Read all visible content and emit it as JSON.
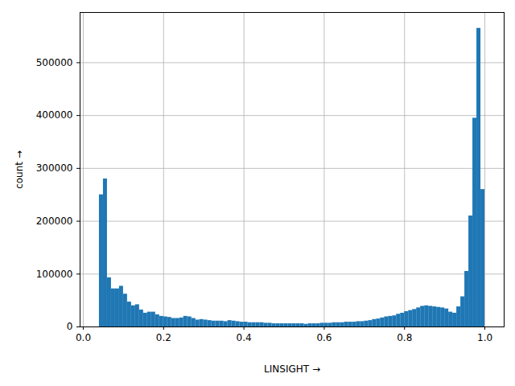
{
  "chart_data": {
    "type": "histogram",
    "x_label": "LINSIGHT",
    "y_label": "count",
    "color": "#1f77b4",
    "grid": true,
    "bins": [
      0.04,
      0.05,
      0.06,
      0.07,
      0.08,
      0.09,
      0.1,
      0.11,
      0.12,
      0.13,
      0.14,
      0.15,
      0.16,
      0.17,
      0.18,
      0.19,
      0.2,
      0.21,
      0.22,
      0.23,
      0.24,
      0.25,
      0.26,
      0.27,
      0.28,
      0.29,
      0.3,
      0.31,
      0.32,
      0.33,
      0.34,
      0.35,
      0.36,
      0.37,
      0.38,
      0.39,
      0.4,
      0.41,
      0.42,
      0.43,
      0.44,
      0.45,
      0.46,
      0.47,
      0.48,
      0.49,
      0.5,
      0.51,
      0.52,
      0.53,
      0.54,
      0.55,
      0.56,
      0.57,
      0.58,
      0.59,
      0.6,
      0.61,
      0.62,
      0.63,
      0.64,
      0.65,
      0.66,
      0.67,
      0.68,
      0.69,
      0.7,
      0.71,
      0.72,
      0.73,
      0.74,
      0.75,
      0.76,
      0.77,
      0.78,
      0.79,
      0.8,
      0.81,
      0.82,
      0.83,
      0.84,
      0.85,
      0.86,
      0.87,
      0.88,
      0.89,
      0.9,
      0.91,
      0.92,
      0.93,
      0.94,
      0.95,
      0.96,
      0.97,
      0.98,
      0.99,
      1.0
    ],
    "counts": [
      250000,
      280000,
      93000,
      72000,
      72000,
      77000,
      62000,
      47000,
      40000,
      42000,
      32000,
      26000,
      28000,
      28000,
      23000,
      20000,
      19000,
      18000,
      16000,
      16000,
      17000,
      20000,
      19000,
      16000,
      13000,
      14000,
      13000,
      12000,
      11000,
      11000,
      11000,
      10000,
      12000,
      11000,
      10000,
      9000,
      9000,
      8000,
      8000,
      8000,
      8000,
      7000,
      7000,
      6000,
      6000,
      6000,
      6000,
      6000,
      6000,
      6000,
      6000,
      5000,
      6000,
      6000,
      6000,
      7000,
      7000,
      7000,
      8000,
      8000,
      8000,
      9000,
      9000,
      9000,
      10000,
      10000,
      11000,
      12000,
      14000,
      15000,
      17000,
      19000,
      20000,
      21000,
      24000,
      26000,
      29000,
      31000,
      33000,
      36000,
      39000,
      40000,
      39000,
      38000,
      37000,
      36000,
      34000,
      28000,
      26000,
      38000,
      57000,
      105000,
      210000,
      395000,
      565000,
      260000
    ],
    "xlim": [
      -0.008,
      1.048
    ],
    "ylim": [
      0,
      595000
    ],
    "xticks": [
      {
        "value": 0,
        "label": "0.0"
      },
      0.2,
      0.4,
      0.6,
      0.8,
      {
        "value": 1,
        "label": "1.0"
      }
    ],
    "yticks": [
      0,
      100000,
      200000,
      300000,
      400000,
      500000
    ]
  }
}
